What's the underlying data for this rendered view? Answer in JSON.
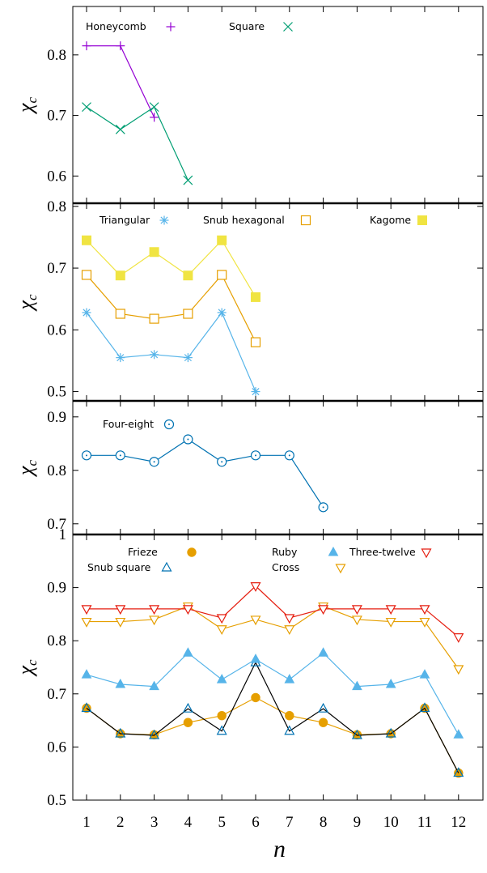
{
  "chart_data": [
    {
      "type": "line",
      "ylabel": "χ",
      "ylabel_sub": "c",
      "ylim": [
        0.555,
        0.88
      ],
      "yticks": [
        0.6,
        0.7,
        0.8
      ],
      "x": [
        1,
        2,
        3,
        4,
        5,
        6,
        7,
        8,
        9,
        10,
        11,
        12
      ],
      "series": [
        {
          "name": "Honeycomb",
          "color": "#9400d3",
          "marker": "plus",
          "points": [
            [
              1,
              0.815
            ],
            [
              2,
              0.815
            ],
            [
              3,
              0.697
            ]
          ]
        },
        {
          "name": "Square",
          "color": "#009e73",
          "marker": "cross",
          "points": [
            [
              1,
              0.714
            ],
            [
              2,
              0.677
            ],
            [
              3,
              0.714
            ],
            [
              4,
              0.593
            ]
          ]
        }
      ]
    },
    {
      "type": "line",
      "ylabel": "χ",
      "ylabel_sub": "c",
      "ylim": [
        0.485,
        0.805
      ],
      "yticks": [
        0.5,
        0.6,
        0.7,
        0.8
      ],
      "x": [
        1,
        2,
        3,
        4,
        5,
        6,
        7,
        8,
        9,
        10,
        11,
        12
      ],
      "series": [
        {
          "name": "Triangular",
          "color": "#56b4e9",
          "marker": "star",
          "points": [
            [
              1,
              0.628
            ],
            [
              2,
              0.555
            ],
            [
              3,
              0.56
            ],
            [
              4,
              0.555
            ],
            [
              5,
              0.628
            ],
            [
              6,
              0.5
            ]
          ]
        },
        {
          "name": "Snub hexagonal",
          "color": "#e69f00",
          "marker": "square-open",
          "points": [
            [
              1,
              0.689
            ],
            [
              2,
              0.626
            ],
            [
              3,
              0.618
            ],
            [
              4,
              0.626
            ],
            [
              5,
              0.689
            ],
            [
              6,
              0.58
            ]
          ]
        },
        {
          "name": "Kagome",
          "color": "#f0e442",
          "marker": "square-filled",
          "points": [
            [
              1,
              0.745
            ],
            [
              2,
              0.688
            ],
            [
              3,
              0.726
            ],
            [
              4,
              0.688
            ],
            [
              5,
              0.745
            ],
            [
              6,
              0.653
            ]
          ]
        }
      ]
    },
    {
      "type": "line",
      "ylabel": "χ",
      "ylabel_sub": "c",
      "ylim": [
        0.68,
        0.93
      ],
      "yticks": [
        0.7,
        0.8,
        0.9
      ],
      "x": [
        1,
        2,
        3,
        4,
        5,
        6,
        7,
        8,
        9,
        10,
        11,
        12
      ],
      "series": [
        {
          "name": "Four-eight",
          "color": "#0072b2",
          "marker": "circle-dot",
          "points": [
            [
              1,
              0.828
            ],
            [
              2,
              0.828
            ],
            [
              3,
              0.816
            ],
            [
              4,
              0.858
            ],
            [
              5,
              0.816
            ],
            [
              6,
              0.828
            ],
            [
              7,
              0.828
            ],
            [
              8,
              0.731
            ]
          ]
        }
      ]
    },
    {
      "type": "line",
      "ylabel": "χ",
      "ylabel_sub": "c",
      "ylim": [
        0.5,
        1.0
      ],
      "yticks": [
        0.5,
        0.6,
        0.7,
        0.8,
        0.9,
        1
      ],
      "x": [
        1,
        2,
        3,
        4,
        5,
        6,
        7,
        8,
        9,
        10,
        11,
        12
      ],
      "xticks": [
        "1",
        "2",
        "3",
        "4",
        "5",
        "6",
        "7",
        "8",
        "9",
        "10",
        "11",
        "12"
      ],
      "xlabel": "n",
      "series": [
        {
          "name": "Frieze",
          "color": "#e69f00",
          "marker": "circle-filled",
          "points": [
            [
              1,
              0.673
            ],
            [
              2,
              0.625
            ],
            [
              3,
              0.623
            ],
            [
              4,
              0.646
            ],
            [
              5,
              0.659
            ],
            [
              6,
              0.693
            ],
            [
              7,
              0.659
            ],
            [
              8,
              0.646
            ],
            [
              9,
              0.623
            ],
            [
              10,
              0.625
            ],
            [
              11,
              0.673
            ],
            [
              12,
              0.551
            ]
          ]
        },
        {
          "name": "Snub square",
          "color": "#000000",
          "markerColor": "#0072b2",
          "marker": "triangle-up-open",
          "points": [
            [
              1,
              0.673
            ],
            [
              2,
              0.625
            ],
            [
              3,
              0.622
            ],
            [
              4,
              0.672
            ],
            [
              5,
              0.63
            ],
            [
              6,
              0.759
            ],
            [
              7,
              0.63
            ],
            [
              8,
              0.672
            ],
            [
              9,
              0.622
            ],
            [
              10,
              0.625
            ],
            [
              11,
              0.673
            ],
            [
              12,
              0.551
            ]
          ]
        },
        {
          "name": "Ruby",
          "color": "#56b4e9",
          "marker": "triangle-up-filled",
          "points": [
            [
              1,
              0.736
            ],
            [
              2,
              0.718
            ],
            [
              3,
              0.714
            ],
            [
              4,
              0.777
            ],
            [
              5,
              0.727
            ],
            [
              6,
              0.765
            ],
            [
              7,
              0.727
            ],
            [
              8,
              0.777
            ],
            [
              9,
              0.714
            ],
            [
              10,
              0.718
            ],
            [
              11,
              0.736
            ],
            [
              12,
              0.623
            ]
          ]
        },
        {
          "name": "Cross",
          "color": "#e69f00",
          "marker": "triangle-down-open",
          "points": [
            [
              1,
              0.836
            ],
            [
              2,
              0.836
            ],
            [
              3,
              0.84
            ],
            [
              4,
              0.865
            ],
            [
              5,
              0.822
            ],
            [
              6,
              0.84
            ],
            [
              7,
              0.822
            ],
            [
              8,
              0.865
            ],
            [
              9,
              0.84
            ],
            [
              10,
              0.836
            ],
            [
              11,
              0.836
            ],
            [
              12,
              0.747
            ]
          ]
        },
        {
          "name": "Three-twelve",
          "color": "#e51e10",
          "marker": "triangle-down-open",
          "points": [
            [
              1,
              0.86
            ],
            [
              2,
              0.86
            ],
            [
              3,
              0.86
            ],
            [
              4,
              0.86
            ],
            [
              5,
              0.843
            ],
            [
              6,
              0.903
            ],
            [
              7,
              0.843
            ],
            [
              8,
              0.86
            ],
            [
              9,
              0.86
            ],
            [
              10,
              0.86
            ],
            [
              11,
              0.86
            ],
            [
              12,
              0.807
            ]
          ]
        }
      ]
    }
  ]
}
